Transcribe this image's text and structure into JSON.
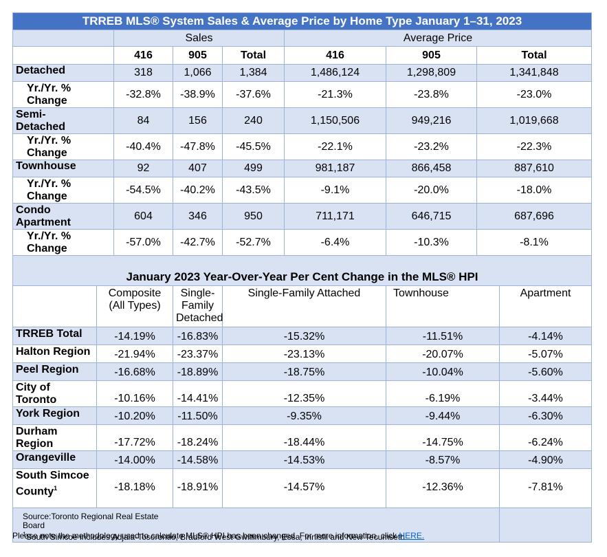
{
  "sales_table": {
    "title": "TRREB MLS® System Sales & Average Price by Home Type January 1–31, 2023",
    "group_sales": "Sales",
    "group_price": "Average Price",
    "col_416": "416",
    "col_905": "905",
    "col_total": "Total",
    "rows": [
      {
        "label": "Detached",
        "values": [
          "318",
          "1,066",
          "1,384",
          "1,486,124",
          "1,298,809",
          "1,341,848"
        ]
      },
      {
        "label_line1": "Yr./Yr. %",
        "label_line2": "Change",
        "values": [
          "-32.8%",
          "-38.9%",
          "-37.6%",
          "-21.3%",
          "-23.8%",
          "-23.0%"
        ]
      },
      {
        "label_line1": "Semi-",
        "label_line2": "Detached",
        "values": [
          "84",
          "156",
          "240",
          "1,150,506",
          "949,216",
          "1,019,668"
        ]
      },
      {
        "label_line1": "Yr./Yr. %",
        "label_line2": "Change",
        "values": [
          "-40.4%",
          "-47.8%",
          "-45.5%",
          "-22.1%",
          "-23.2%",
          "-22.3%"
        ]
      },
      {
        "label": "Townhouse",
        "values": [
          "92",
          "407",
          "499",
          "981,187",
          "866,458",
          "887,610"
        ]
      },
      {
        "label_line1": "Yr./Yr. %",
        "label_line2": "Change",
        "values": [
          "-54.5%",
          "-40.2%",
          "-43.5%",
          "-9.1%",
          "-20.0%",
          "-18.0%"
        ]
      },
      {
        "label_line1": "Condo",
        "label_line2": "Apartment",
        "values": [
          "604",
          "346",
          "950",
          "711,171",
          "646,715",
          "687,696"
        ]
      },
      {
        "label_line1": "Yr./Yr. %",
        "label_line2": "Change",
        "values": [
          "-57.0%",
          "-42.7%",
          "-52.7%",
          "-6.4%",
          "-10.3%",
          "-8.1%"
        ]
      }
    ]
  },
  "hpi_table": {
    "title": "January 2023 Year-Over-Year Per Cent Change in the MLS® HPI",
    "headers": {
      "composite_1": "Composite",
      "composite_2": "(All Types)",
      "sfd_1": "Single-",
      "sfd_2": "Family",
      "sfd_3": "Detached",
      "sfa": "Single-Family Attached",
      "townhouse": "Townhouse",
      "apartment": "Apartment"
    },
    "rows": [
      {
        "label": "TRREB Total",
        "values": [
          "-14.19%",
          "-16.83%",
          "-15.32%",
          "-11.51%",
          "-4.14%"
        ]
      },
      {
        "label": "Halton Region",
        "values": [
          "-21.94%",
          "-23.37%",
          "-23.13%",
          "-20.07%",
          "-5.07%"
        ]
      },
      {
        "label": "Peel Region",
        "values": [
          "-16.68%",
          "-18.89%",
          "-18.75%",
          "-10.04%",
          "-5.60%"
        ]
      },
      {
        "label": "City of Toronto",
        "values": [
          "-10.16%",
          "-14.41%",
          "-12.35%",
          "-6.19%",
          "-3.44%"
        ]
      },
      {
        "label": "York Region",
        "values": [
          "-10.20%",
          "-11.50%",
          "-9.35%",
          "-9.44%",
          "-6.30%"
        ]
      },
      {
        "label": "Durham Region",
        "values": [
          "-17.72%",
          "-18.24%",
          "-18.44%",
          "-14.75%",
          "-6.24%"
        ]
      },
      {
        "label": "Orangeville",
        "values": [
          "-14.00%",
          "-14.58%",
          "-14.53%",
          "-8.57%",
          "-4.90%"
        ]
      },
      {
        "label_line1": "South Simcoe",
        "label_line2": "County",
        "sup": "1",
        "values": [
          "-18.18%",
          "-18.91%",
          "-14.57%",
          "-12.36%",
          "-7.81%"
        ]
      }
    ]
  },
  "source": {
    "line1": "Source:Toronto Regional Real Estate",
    "line2": "Board",
    "footnote_sup": "1",
    "footnote": "South Simcoe includes Adjala-Tosorontio, Bradford West Gwillimbury, Essa, Innisfil and New Tecumseth"
  },
  "note": {
    "text": "Please note the methodology used to calculate MLS® HPI has been changed. For more information, click ",
    "link": "HERE."
  }
}
